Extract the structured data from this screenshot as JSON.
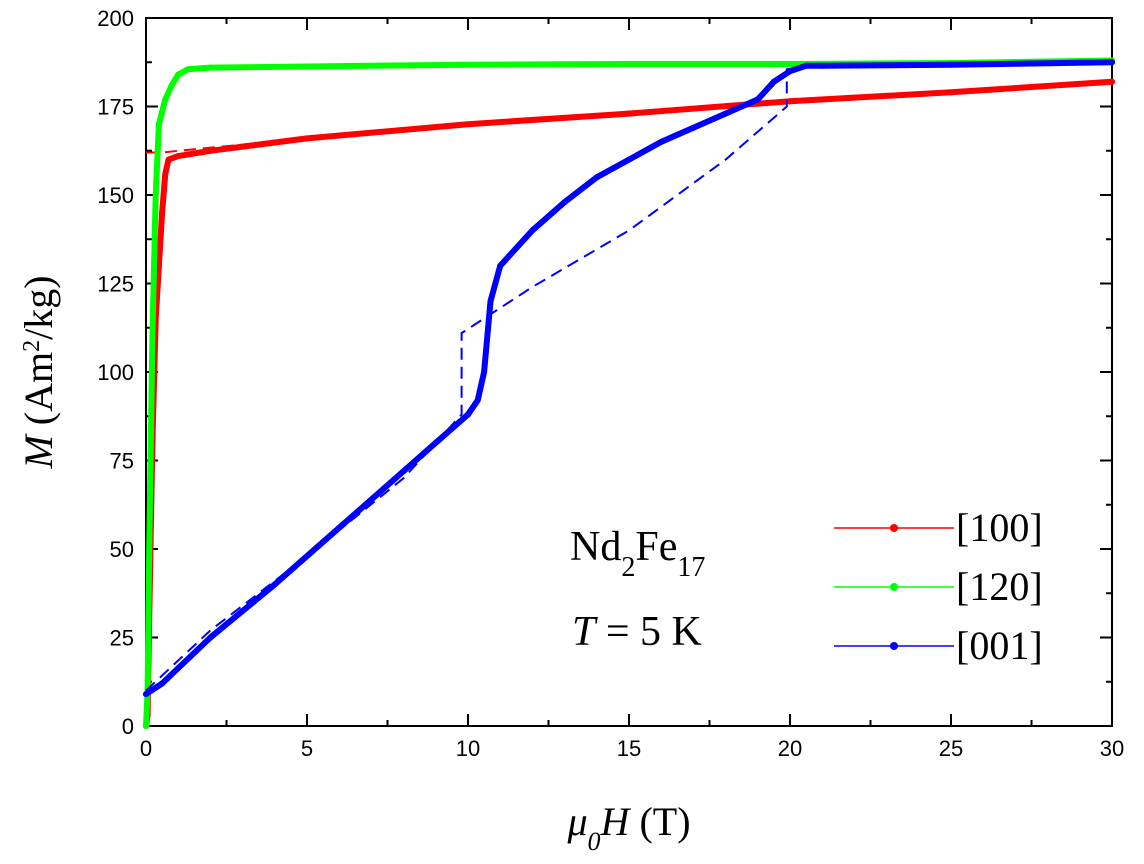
{
  "chart_data": {
    "type": "line",
    "xlabel_parts": {
      "symbol": "μ",
      "subscript": "0",
      "var": "H",
      "unit": " (T)"
    },
    "ylabel_parts": {
      "var": "M",
      "unit_pre": " (Am",
      "sup": "2",
      "unit_post": "/kg)"
    },
    "xlim": [
      0,
      30
    ],
    "ylim": [
      0,
      200
    ],
    "xticks": [
      0,
      5,
      10,
      15,
      20,
      25,
      30
    ],
    "yticks": [
      0,
      25,
      50,
      75,
      100,
      125,
      150,
      175,
      200
    ],
    "xtick_labels": [
      "0",
      "5",
      "10",
      "15",
      "20",
      "25",
      "30"
    ],
    "ytick_labels": [
      "0",
      "25",
      "50",
      "75",
      "100",
      "125",
      "150",
      "175",
      "200"
    ],
    "grid": false,
    "legend_placement": "bottom-right",
    "annotation": {
      "compound": {
        "a": "Nd",
        "a_sub": "2",
        "b": "Fe",
        "b_sub": "17"
      },
      "temperature": {
        "var": "T",
        "rest": " = 5 K"
      }
    },
    "series": [
      {
        "name": "[100]",
        "color": "#ff0000",
        "measured": [
          [
            0,
            0
          ],
          [
            0.05,
            3
          ],
          [
            0.1,
            30
          ],
          [
            0.2,
            80
          ],
          [
            0.3,
            115
          ],
          [
            0.4,
            130
          ],
          [
            0.5,
            145
          ],
          [
            0.6,
            156
          ],
          [
            0.7,
            160
          ],
          [
            1.0,
            161
          ],
          [
            2,
            162.5
          ],
          [
            5,
            166
          ],
          [
            10,
            170
          ],
          [
            15,
            173
          ],
          [
            20,
            176.5
          ],
          [
            25,
            179
          ],
          [
            30,
            182
          ]
        ],
        "calculated": [
          [
            0,
            162
          ],
          [
            0.5,
            162
          ],
          [
            1,
            162.5
          ],
          [
            5,
            166
          ],
          [
            10,
            170
          ],
          [
            15,
            173.5
          ],
          [
            20,
            176.5
          ],
          [
            25,
            179
          ],
          [
            30,
            182
          ]
        ]
      },
      {
        "name": "[120]",
        "color": "#00ff00",
        "measured": [
          [
            0,
            0
          ],
          [
            0.05,
            10
          ],
          [
            0.1,
            50
          ],
          [
            0.2,
            110
          ],
          [
            0.3,
            150
          ],
          [
            0.4,
            170
          ],
          [
            0.6,
            177
          ],
          [
            0.8,
            181
          ],
          [
            1.0,
            184
          ],
          [
            1.3,
            185.5
          ],
          [
            2,
            186
          ],
          [
            5,
            186.3
          ],
          [
            10,
            186.8
          ],
          [
            15,
            187
          ],
          [
            20,
            187
          ],
          [
            25,
            187.3
          ],
          [
            30,
            188
          ]
        ],
        "calculated": []
      },
      {
        "name": "[001]",
        "color": "#0000ff",
        "measured": [
          [
            0,
            9
          ],
          [
            0.5,
            12
          ],
          [
            2,
            25
          ],
          [
            4,
            40
          ],
          [
            6,
            56
          ],
          [
            8,
            72
          ],
          [
            9,
            80
          ],
          [
            10,
            88
          ],
          [
            10.3,
            92
          ],
          [
            10.5,
            100
          ],
          [
            10.7,
            120
          ],
          [
            11,
            130
          ],
          [
            12,
            140
          ],
          [
            13,
            148
          ],
          [
            14,
            155
          ],
          [
            15,
            160
          ],
          [
            16,
            165
          ],
          [
            17,
            169
          ],
          [
            18,
            173
          ],
          [
            19,
            177
          ],
          [
            19.5,
            182
          ],
          [
            20,
            185
          ],
          [
            20.5,
            186.5
          ],
          [
            21,
            186.5
          ],
          [
            25,
            186.8
          ],
          [
            30,
            187.5
          ]
        ],
        "calculated": [
          [
            0,
            10
          ],
          [
            2,
            27
          ],
          [
            5,
            48
          ],
          [
            8,
            70
          ],
          [
            9.8,
            88
          ],
          [
            9.8,
            111
          ],
          [
            12,
            124
          ],
          [
            15,
            140
          ],
          [
            18,
            160
          ],
          [
            19.9,
            175
          ],
          [
            19.9,
            185.5
          ],
          [
            20.5,
            186.5
          ],
          [
            30,
            187.5
          ]
        ]
      }
    ]
  }
}
